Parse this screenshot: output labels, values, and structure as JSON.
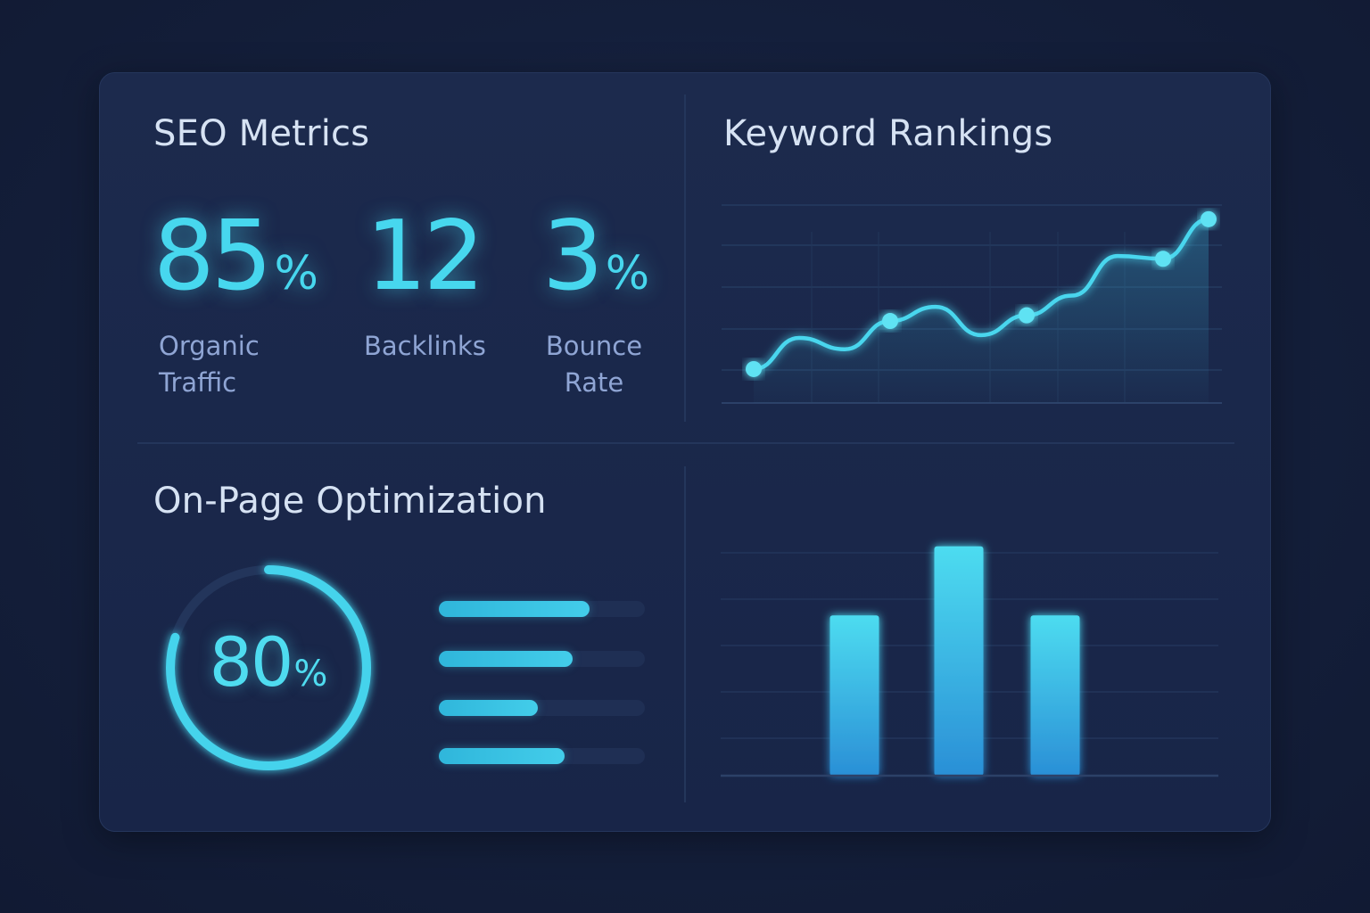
{
  "seo_metrics": {
    "title": "SEO Metrics",
    "items": [
      {
        "value": "85",
        "unit": "%",
        "label": "Organic\nTraffic"
      },
      {
        "value": "12",
        "unit": "",
        "label": "Backlinks"
      },
      {
        "value": "3",
        "unit": "%",
        "label": "Bounce\nRate"
      }
    ]
  },
  "keyword_rankings": {
    "title": "Keyword Rankings"
  },
  "on_page": {
    "title": "On-Page Optimization",
    "score_value": "80",
    "score_unit": "%",
    "score_fraction": 0.8,
    "bars": [
      0.73,
      0.65,
      0.48,
      0.61
    ]
  },
  "colors": {
    "accent": "#47d7ee",
    "background": "#141f3b",
    "card": "#1c2a4d"
  },
  "chart_data": [
    {
      "type": "line",
      "title": "Keyword Rankings",
      "x": [
        1,
        2,
        3,
        4,
        5,
        6,
        7,
        8,
        9,
        10,
        11
      ],
      "values": [
        12,
        23,
        19,
        29,
        34,
        24,
        31,
        38,
        52,
        51,
        65
      ],
      "markers": [
        0,
        3,
        6,
        9,
        10
      ],
      "ylim": [
        0,
        70
      ],
      "grid": true,
      "xlabel": "",
      "ylabel": ""
    },
    {
      "type": "bar",
      "categories": [
        "",
        "",
        ""
      ],
      "values": [
        58,
        83,
        58
      ],
      "ylim": [
        0,
        100
      ],
      "grid": true,
      "xlabel": "",
      "ylabel": ""
    }
  ]
}
